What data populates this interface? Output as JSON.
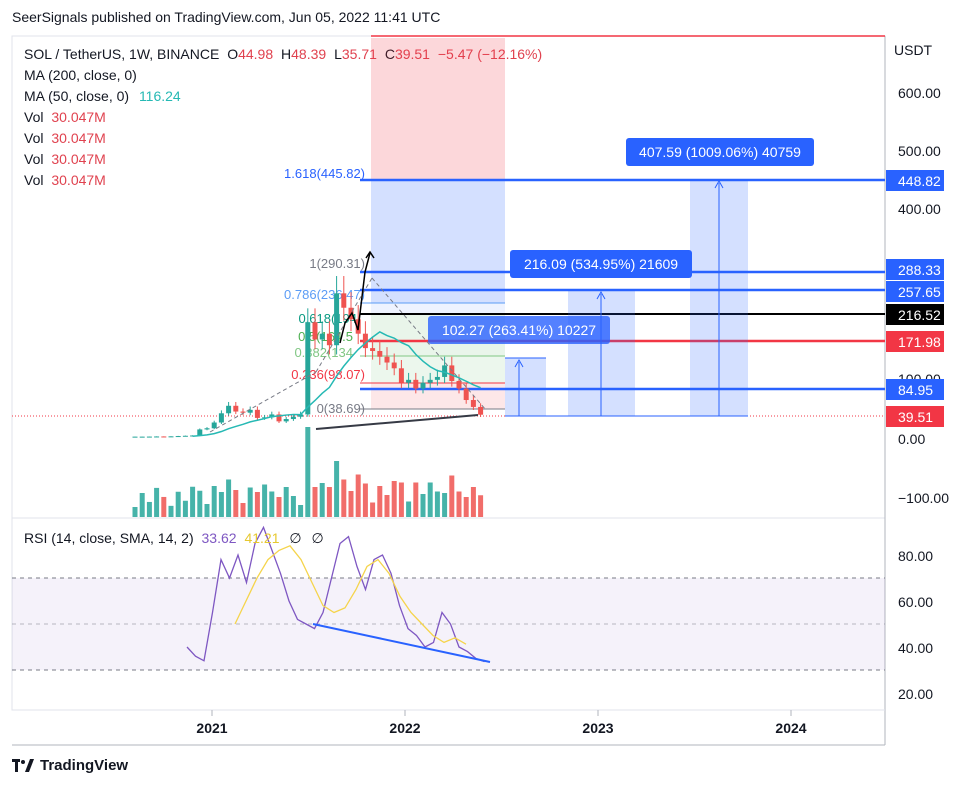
{
  "header": {
    "publisher_line": "SeerSignals published on TradingView.com, Jun 05, 2022 11:41 UTC"
  },
  "legend": {
    "symbol": "SOL / TetherUS, 1W, BINANCE",
    "o_label": "O",
    "o_value": "44.98",
    "h_label": "H",
    "h_value": "48.39",
    "l_label": "L",
    "l_value": "35.71",
    "c_label": "C",
    "c_value": "39.51",
    "change": "−5.47 (−12.16%)",
    "ma200": "MA (200, close, 0)",
    "ma50": "MA (50, close, 0)",
    "ma50_value": "116.24",
    "vol_rows": [
      {
        "label": "Vol",
        "value": "30.047M"
      },
      {
        "label": "Vol",
        "value": "30.047M"
      },
      {
        "label": "Vol",
        "value": "30.047M"
      },
      {
        "label": "Vol",
        "value": "30.047M"
      }
    ]
  },
  "rsi_legend": {
    "label": "RSI (14, close, SMA, 14, 2)",
    "v1": "33.62",
    "v2": "41.21",
    "v3": "∅",
    "v4": "∅"
  },
  "price_axis": {
    "unit": "USDT",
    "ticks": [
      "600.00",
      "500.00",
      "400.00",
      "100.00",
      "0.00",
      "−100.00"
    ],
    "badges": [
      {
        "text": "448.82",
        "color": "#2962ff"
      },
      {
        "text": "288.33",
        "color": "#2962ff"
      },
      {
        "text": "257.65",
        "color": "#2962ff"
      },
      {
        "text": "216.52",
        "color": "#000000"
      },
      {
        "text": "171.98",
        "color": "#f23645"
      },
      {
        "text": "84.95",
        "color": "#2962ff"
      },
      {
        "text": "39.51",
        "color": "#f23645"
      }
    ]
  },
  "rsi_axis": {
    "ticks": [
      "80.00",
      "60.00",
      "40.00",
      "20.00"
    ]
  },
  "time_axis": {
    "ticks": [
      "2021",
      "2022",
      "2023",
      "2024"
    ]
  },
  "fib_levels": [
    {
      "label": "1.618(445.82)",
      "color": "#2962ff"
    },
    {
      "label": "1(290.31)",
      "color": "#787b86"
    },
    {
      "label": "0.786(236.47)",
      "color": "#5b9cf6"
    },
    {
      "label": "0.618(194",
      "color": "#089981"
    },
    {
      "label": "0.5(164.5",
      "color": "#4caf50"
    },
    {
      "label": "0.382(134",
      "color": "#81c784"
    },
    {
      "label": "0.236(98.07)",
      "color": "#f23645"
    },
    {
      "label": "0(38.69)",
      "color": "#787b86"
    }
  ],
  "measure_labels": [
    {
      "text": "407.59 (1009.06%) 40759"
    },
    {
      "text": "216.09 (534.95%) 21609"
    },
    {
      "text": "102.27 (263.41%) 10227"
    }
  ],
  "colors": {
    "up": "#26a69a",
    "down": "#ef5350",
    "rsi": "#7e57c2",
    "rsi_ma": "#f5d44b",
    "ma200": "#26b9b4"
  },
  "footer": {
    "logo_icon": "tradingview-logo-icon",
    "brand": "TradingView"
  },
  "chart_data": {
    "type": "candlestick",
    "symbol": "SOL / TetherUS",
    "interval": "1W",
    "price_ticks": [
      600,
      500,
      400,
      100,
      0,
      -100
    ],
    "rsi_range": [
      20,
      90
    ],
    "price_series_close": [
      1.5,
      1.5,
      1.6,
      1.8,
      1.7,
      2.0,
      2.5,
      3.0,
      3.5,
      14,
      16,
      26,
      42,
      55,
      45,
      43,
      48,
      34,
      35,
      40,
      28,
      32,
      36,
      40,
      200,
      170,
      180,
      160,
      250,
      225,
      205,
      180,
      155,
      150,
      140,
      130,
      120,
      95,
      100,
      85,
      95,
      100,
      105,
      125,
      98,
      85,
      65,
      53,
      39.51
    ],
    "rsi_series": [
      40,
      36,
      34,
      55,
      78,
      70,
      80,
      68,
      85,
      92,
      82,
      72,
      60,
      52,
      50,
      48,
      55,
      70,
      85,
      88,
      75,
      65,
      78,
      80,
      72,
      58,
      48,
      45,
      40,
      42,
      55,
      50,
      40,
      38,
      35,
      33.62
    ],
    "rsi_ma_series": [
      null,
      null,
      null,
      null,
      50,
      60,
      70,
      78,
      82,
      84,
      78,
      68,
      58,
      55,
      57,
      65,
      75,
      78,
      72,
      62,
      55,
      50,
      45,
      42,
      44,
      41.21
    ]
  }
}
